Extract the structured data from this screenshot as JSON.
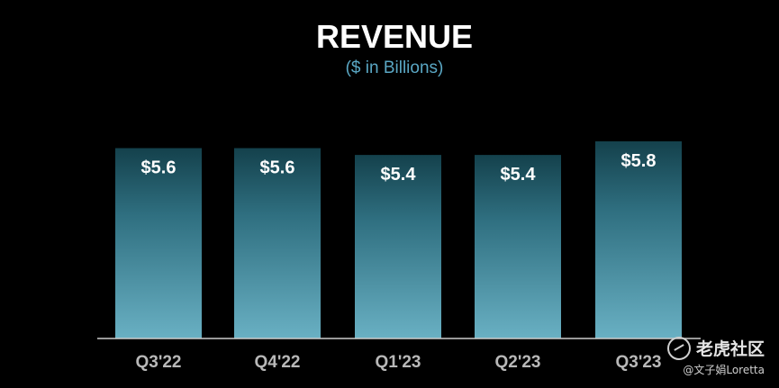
{
  "chart_data": {
    "type": "bar",
    "title": "REVENUE",
    "subtitle": "($ in Billions)",
    "categories": [
      "Q3'22",
      "Q4'22",
      "Q1'23",
      "Q2'23",
      "Q3'23"
    ],
    "values": [
      5.6,
      5.6,
      5.4,
      5.4,
      5.8
    ],
    "data_labels": [
      "$5.6",
      "$5.6",
      "$5.4",
      "$5.4",
      "$5.8"
    ],
    "xlabel": "",
    "ylabel": "",
    "ylim": [
      0,
      5.8
    ],
    "grid": false,
    "legend": "none",
    "colors": {
      "background": "#000000",
      "bar_top": "#14414c",
      "bar_bottom": "#69b0c3",
      "title": "#ffffff",
      "subtitle": "#5aa7c4",
      "tick_label": "#b8b8b8",
      "axis": "#cccccc"
    }
  },
  "watermark": {
    "brand": "老虎社区",
    "user": "@文子娟Loretta",
    "icon": "tiger-logo-icon"
  }
}
